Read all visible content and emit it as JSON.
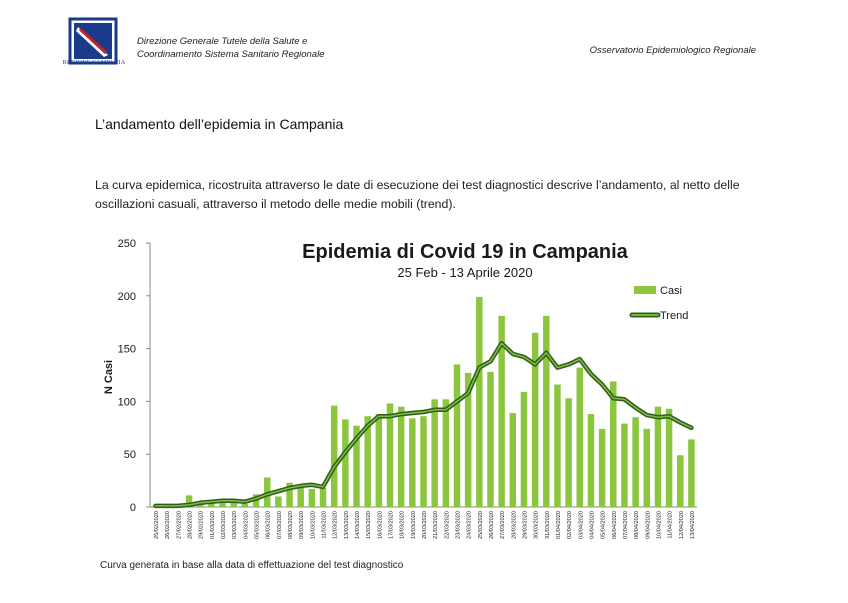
{
  "header": {
    "logo_text": "REGIONE CAMPANIA",
    "left_line1": "Direzione Generale Tutele della Salute e",
    "left_line2": "Coordinamento Sistema Sanitario Regionale",
    "right": "Osservatorio Epidemiologico Regionale"
  },
  "document": {
    "section_title": "L’andamento dell’epidemia in Campania",
    "paragraph": "La curva epidemica, ricostruita attraverso le date di esecuzione dei test diagnostici descrive l’andamento, al netto delle oscillazioni casuali, attraverso il metodo delle medie mobili (trend).",
    "caption": "Curva generata in base alla data di effettuazione del test diagnostico"
  },
  "colors": {
    "bar": "#8cc63f",
    "trend_outer": "#2f5d1c",
    "trend_inner": "#7fbf3f"
  },
  "chart_data": {
    "type": "bar",
    "title": "Epidemia di Covid 19 in Campania",
    "subtitle": "25 Feb - 13 Aprile 2020",
    "ylabel": "N Casi",
    "xlabel": "",
    "ylim": [
      0,
      250
    ],
    "yticks": [
      0,
      50,
      100,
      150,
      200,
      250
    ],
    "legend_position": "top-right",
    "categories": [
      "25/02/2020",
      "26/02/2020",
      "27/02/2020",
      "28/02/2020",
      "29/02/2020",
      "01/03/2020",
      "02/03/2020",
      "03/03/2020",
      "04/03/2020",
      "05/03/2020",
      "06/03/2020",
      "07/03/2020",
      "08/03/2020",
      "09/03/2020",
      "10/03/2020",
      "11/03/2020",
      "12/03/2020",
      "13/03/2020",
      "14/03/2020",
      "15/03/2020",
      "16/03/2020",
      "17/03/2020",
      "18/03/2020",
      "19/03/2020",
      "20/03/2020",
      "21/03/2020",
      "22/03/2020",
      "23/03/2020",
      "24/03/2020",
      "25/03/2020",
      "26/03/2020",
      "27/03/2020",
      "28/03/2020",
      "29/03/2020",
      "30/03/2020",
      "31/03/2020",
      "01/04/2020",
      "02/04/2020",
      "03/04/2020",
      "04/04/2020",
      "05/04/2020",
      "06/04/2020",
      "07/04/2020",
      "08/04/2020",
      "09/04/2020",
      "10/04/2020",
      "11/04/2020",
      "12/04/2020",
      "13/04/2020"
    ],
    "series": [
      {
        "name": "Casi",
        "type": "bar",
        "values": [
          1,
          1,
          1,
          11,
          3,
          5,
          5,
          5,
          3,
          12,
          28,
          10,
          23,
          20,
          17,
          18,
          96,
          83,
          77,
          86,
          88,
          98,
          95,
          84,
          86,
          102,
          102,
          135,
          127,
          199,
          128,
          181,
          89,
          109,
          165,
          181,
          116,
          103,
          132,
          88,
          74,
          119,
          79,
          85,
          74,
          95,
          93,
          49,
          64
        ]
      },
      {
        "name": "Trend",
        "type": "line",
        "values": [
          1,
          1,
          1,
          2,
          4,
          5,
          6,
          6,
          5,
          8,
          12,
          15,
          18,
          20,
          21,
          19,
          38,
          52,
          65,
          77,
          86,
          86,
          88,
          89,
          90,
          92,
          92,
          100,
          108,
          132,
          138,
          155,
          145,
          142,
          135,
          146,
          132,
          135,
          140,
          126,
          116,
          103,
          102,
          94,
          87,
          85,
          86,
          80,
          75
        ]
      }
    ]
  }
}
